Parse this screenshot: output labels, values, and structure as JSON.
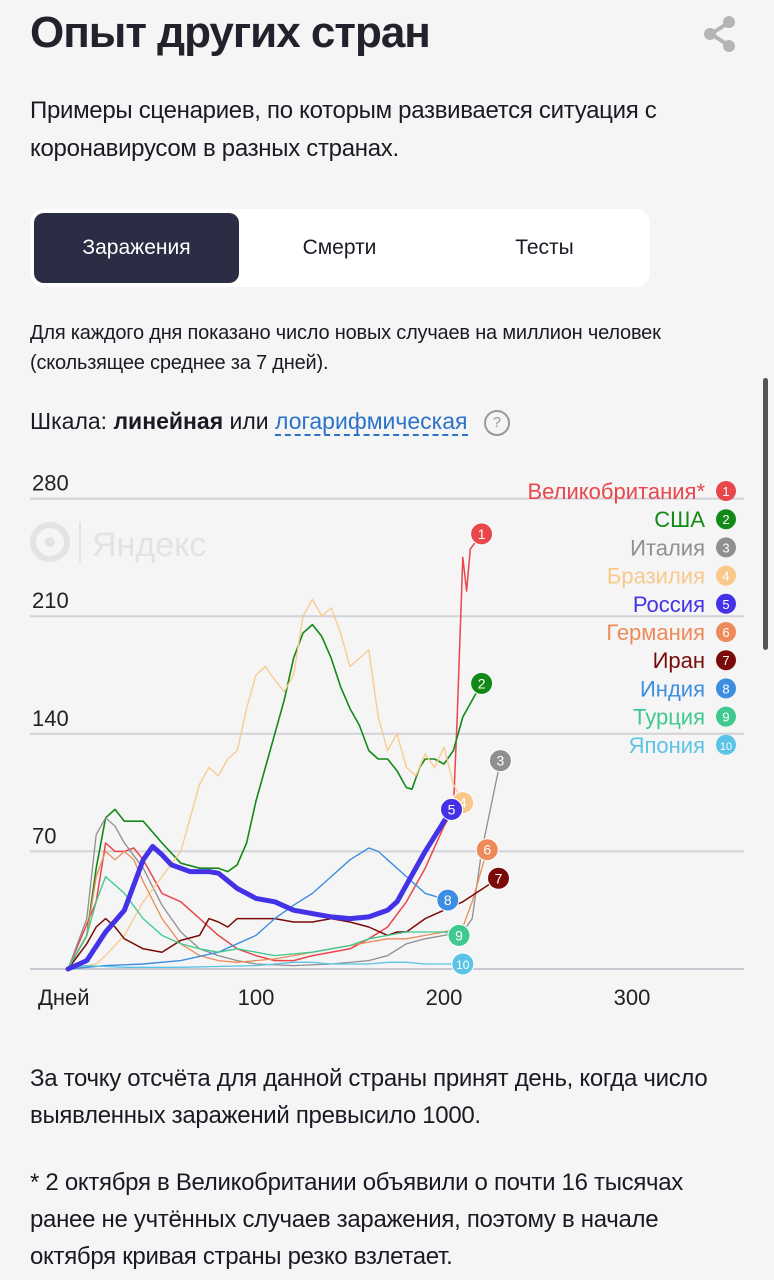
{
  "header": {
    "title": "Опыт других стран",
    "share_icon": "share-icon"
  },
  "intro": "Примеры сценариев, по которым развивается ситуация с коронавирусом в разных странах.",
  "tabs": [
    {
      "label": "Заражения",
      "active": true
    },
    {
      "label": "Смерти",
      "active": false
    },
    {
      "label": "Тесты",
      "active": false
    }
  ],
  "description": "Для каждого дня показано число новых случаев на миллион человек (скользящее среднее за 7 дней).",
  "scale": {
    "label": "Шкала:",
    "linear": "линейная",
    "or": "или",
    "log": "логарифмическая",
    "help": "?"
  },
  "watermark": "Яндекс",
  "chart_data": {
    "type": "line",
    "title": "",
    "xlabel": "Дней",
    "ylabel": "",
    "xlim": [
      0,
      360
    ],
    "ylim": [
      0,
      280
    ],
    "x_ticks": [
      {
        "value": 0,
        "label": "Дней"
      },
      {
        "value": 100,
        "label": "100"
      },
      {
        "value": 200,
        "label": "200"
      },
      {
        "value": 300,
        "label": "300"
      }
    ],
    "y_ticks": [
      {
        "value": 280,
        "label": "280"
      },
      {
        "value": 210,
        "label": "210"
      },
      {
        "value": 140,
        "label": "140"
      },
      {
        "value": 70,
        "label": "70"
      }
    ],
    "grid": true,
    "legend_position": "top-right",
    "series": [
      {
        "name": "Великобритания*",
        "num": "1",
        "color": "#e8474c",
        "width": 1.5,
        "points": [
          [
            0,
            0
          ],
          [
            15,
            40
          ],
          [
            20,
            75
          ],
          [
            25,
            70
          ],
          [
            30,
            70
          ],
          [
            35,
            72
          ],
          [
            40,
            65
          ],
          [
            50,
            45
          ],
          [
            60,
            40
          ],
          [
            70,
            30
          ],
          [
            80,
            20
          ],
          [
            90,
            12
          ],
          [
            100,
            8
          ],
          [
            110,
            5
          ],
          [
            120,
            5
          ],
          [
            130,
            8
          ],
          [
            140,
            10
          ],
          [
            150,
            12
          ],
          [
            160,
            18
          ],
          [
            170,
            25
          ],
          [
            180,
            40
          ],
          [
            190,
            60
          ],
          [
            200,
            85
          ],
          [
            205,
            95
          ],
          [
            207,
            150
          ],
          [
            210,
            245
          ],
          [
            212,
            225
          ],
          [
            214,
            250
          ],
          [
            220,
            259
          ]
        ]
      },
      {
        "name": "США",
        "num": "2",
        "color": "#138a17",
        "width": 1.6,
        "points": [
          [
            0,
            0
          ],
          [
            10,
            20
          ],
          [
            15,
            60
          ],
          [
            20,
            90
          ],
          [
            25,
            95
          ],
          [
            30,
            88
          ],
          [
            40,
            88
          ],
          [
            50,
            75
          ],
          [
            60,
            63
          ],
          [
            70,
            60
          ],
          [
            80,
            60
          ],
          [
            85,
            58
          ],
          [
            90,
            62
          ],
          [
            95,
            75
          ],
          [
            100,
            100
          ],
          [
            110,
            140
          ],
          [
            115,
            160
          ],
          [
            120,
            185
          ],
          [
            125,
            200
          ],
          [
            130,
            205
          ],
          [
            135,
            198
          ],
          [
            140,
            185
          ],
          [
            145,
            168
          ],
          [
            150,
            155
          ],
          [
            155,
            145
          ],
          [
            160,
            130
          ],
          [
            165,
            125
          ],
          [
            170,
            125
          ],
          [
            175,
            118
          ],
          [
            180,
            108
          ],
          [
            183,
            107
          ],
          [
            187,
            120
          ],
          [
            190,
            125
          ],
          [
            195,
            125
          ],
          [
            200,
            122
          ],
          [
            205,
            130
          ],
          [
            210,
            150
          ],
          [
            220,
            170
          ]
        ]
      },
      {
        "name": "Италия",
        "num": "3",
        "color": "#8f8f8f",
        "width": 1.3,
        "points": [
          [
            0,
            0
          ],
          [
            10,
            30
          ],
          [
            15,
            80
          ],
          [
            20,
            90
          ],
          [
            25,
            85
          ],
          [
            30,
            75
          ],
          [
            40,
            60
          ],
          [
            50,
            38
          ],
          [
            60,
            22
          ],
          [
            70,
            12
          ],
          [
            80,
            8
          ],
          [
            90,
            5
          ],
          [
            100,
            3
          ],
          [
            120,
            2
          ],
          [
            140,
            3
          ],
          [
            160,
            5
          ],
          [
            170,
            8
          ],
          [
            180,
            15
          ],
          [
            190,
            18
          ],
          [
            200,
            20
          ],
          [
            210,
            22
          ],
          [
            215,
            30
          ],
          [
            220,
            70
          ],
          [
            230,
            124
          ]
        ]
      },
      {
        "name": "Бразилия",
        "num": "4",
        "color": "#f9c98a",
        "width": 1.3,
        "points": [
          [
            0,
            0
          ],
          [
            15,
            3
          ],
          [
            20,
            8
          ],
          [
            30,
            20
          ],
          [
            40,
            40
          ],
          [
            50,
            55
          ],
          [
            60,
            70
          ],
          [
            65,
            90
          ],
          [
            70,
            110
          ],
          [
            75,
            120
          ],
          [
            80,
            115
          ],
          [
            85,
            125
          ],
          [
            90,
            130
          ],
          [
            95,
            155
          ],
          [
            100,
            175
          ],
          [
            105,
            180
          ],
          [
            110,
            172
          ],
          [
            115,
            165
          ],
          [
            120,
            175
          ],
          [
            125,
            210
          ],
          [
            130,
            220
          ],
          [
            135,
            210
          ],
          [
            140,
            215
          ],
          [
            145,
            200
          ],
          [
            150,
            180
          ],
          [
            155,
            185
          ],
          [
            160,
            190
          ],
          [
            165,
            150
          ],
          [
            170,
            130
          ],
          [
            175,
            140
          ],
          [
            180,
            120
          ],
          [
            185,
            115
          ],
          [
            190,
            128
          ],
          [
            195,
            120
          ],
          [
            200,
            132
          ],
          [
            205,
            110
          ],
          [
            210,
            99
          ]
        ]
      },
      {
        "name": "Россия",
        "num": "5",
        "color": "#4433e6",
        "width": 5,
        "points": [
          [
            0,
            0
          ],
          [
            10,
            5
          ],
          [
            20,
            22
          ],
          [
            30,
            35
          ],
          [
            35,
            50
          ],
          [
            40,
            65
          ],
          [
            45,
            73
          ],
          [
            50,
            68
          ],
          [
            55,
            62
          ],
          [
            65,
            58
          ],
          [
            75,
            58
          ],
          [
            80,
            57
          ],
          [
            90,
            48
          ],
          [
            100,
            42
          ],
          [
            110,
            40
          ],
          [
            120,
            35
          ],
          [
            130,
            33
          ],
          [
            140,
            31
          ],
          [
            150,
            30
          ],
          [
            160,
            31
          ],
          [
            170,
            35
          ],
          [
            175,
            40
          ],
          [
            180,
            50
          ],
          [
            190,
            70
          ],
          [
            204,
            95
          ]
        ]
      },
      {
        "name": "Германия",
        "num": "6",
        "color": "#ee8a5a",
        "width": 1.3,
        "points": [
          [
            0,
            0
          ],
          [
            10,
            20
          ],
          [
            15,
            55
          ],
          [
            20,
            70
          ],
          [
            25,
            65
          ],
          [
            30,
            70
          ],
          [
            35,
            65
          ],
          [
            40,
            52
          ],
          [
            50,
            30
          ],
          [
            60,
            15
          ],
          [
            70,
            8
          ],
          [
            80,
            5
          ],
          [
            90,
            4
          ],
          [
            100,
            5
          ],
          [
            110,
            6
          ],
          [
            120,
            8
          ],
          [
            130,
            10
          ],
          [
            140,
            12
          ],
          [
            150,
            14
          ],
          [
            160,
            16
          ],
          [
            170,
            18
          ],
          [
            180,
            18
          ],
          [
            190,
            20
          ],
          [
            200,
            22
          ],
          [
            210,
            25
          ],
          [
            215,
            40
          ],
          [
            223,
            71
          ]
        ]
      },
      {
        "name": "Иран",
        "num": "7",
        "color": "#7a0a0a",
        "width": 1.5,
        "points": [
          [
            0,
            0
          ],
          [
            10,
            15
          ],
          [
            15,
            25
          ],
          [
            20,
            30
          ],
          [
            25,
            25
          ],
          [
            30,
            18
          ],
          [
            40,
            12
          ],
          [
            50,
            10
          ],
          [
            60,
            17
          ],
          [
            70,
            20
          ],
          [
            75,
            30
          ],
          [
            80,
            28
          ],
          [
            85,
            25
          ],
          [
            90,
            30
          ],
          [
            100,
            30
          ],
          [
            110,
            30
          ],
          [
            120,
            28
          ],
          [
            130,
            28
          ],
          [
            140,
            30
          ],
          [
            150,
            28
          ],
          [
            160,
            25
          ],
          [
            170,
            20
          ],
          [
            175,
            22
          ],
          [
            180,
            22
          ],
          [
            190,
            30
          ],
          [
            200,
            35
          ],
          [
            210,
            40
          ],
          [
            229,
            54
          ]
        ]
      },
      {
        "name": "Индия",
        "num": "8",
        "color": "#3d8ee0",
        "width": 1.4,
        "points": [
          [
            0,
            0
          ],
          [
            20,
            2
          ],
          [
            40,
            3
          ],
          [
            60,
            5
          ],
          [
            80,
            10
          ],
          [
            100,
            20
          ],
          [
            110,
            30
          ],
          [
            120,
            38
          ],
          [
            130,
            45
          ],
          [
            140,
            55
          ],
          [
            150,
            65
          ],
          [
            160,
            72
          ],
          [
            165,
            70
          ],
          [
            170,
            65
          ],
          [
            180,
            55
          ],
          [
            190,
            45
          ],
          [
            202,
            41
          ]
        ]
      },
      {
        "name": "Турция",
        "num": "9",
        "color": "#3fc98f",
        "width": 1.3,
        "points": [
          [
            0,
            0
          ],
          [
            10,
            20
          ],
          [
            15,
            40
          ],
          [
            20,
            55
          ],
          [
            25,
            50
          ],
          [
            30,
            45
          ],
          [
            40,
            30
          ],
          [
            50,
            20
          ],
          [
            60,
            15
          ],
          [
            70,
            12
          ],
          [
            80,
            10
          ],
          [
            90,
            12
          ],
          [
            100,
            10
          ],
          [
            110,
            8
          ],
          [
            120,
            9
          ],
          [
            130,
            10
          ],
          [
            140,
            12
          ],
          [
            150,
            14
          ],
          [
            160,
            18
          ],
          [
            170,
            20
          ],
          [
            180,
            22
          ],
          [
            190,
            22
          ],
          [
            200,
            22
          ],
          [
            208,
            20
          ]
        ]
      },
      {
        "name": "Япония",
        "num": "10",
        "color": "#5bc4e6",
        "width": 1.3,
        "points": [
          [
            0,
            1
          ],
          [
            10,
            2
          ],
          [
            30,
            1
          ],
          [
            60,
            1
          ],
          [
            100,
            2
          ],
          [
            110,
            3
          ],
          [
            120,
            4
          ],
          [
            130,
            4
          ],
          [
            140,
            3
          ],
          [
            150,
            3
          ],
          [
            160,
            3
          ],
          [
            170,
            4
          ],
          [
            180,
            4
          ],
          [
            190,
            3
          ],
          [
            200,
            3
          ],
          [
            210,
            3
          ]
        ]
      }
    ]
  },
  "notes": {
    "start": "За точку отсчёта для данной страны принят день, когда число выявленных заражений превысило 1000.",
    "footnote": "* 2 октября в Великобритании объявили о почти 16 тысячах ранее не учтённых случаев заражения, поэтому в начале октября кривая страны резко взлетает."
  }
}
